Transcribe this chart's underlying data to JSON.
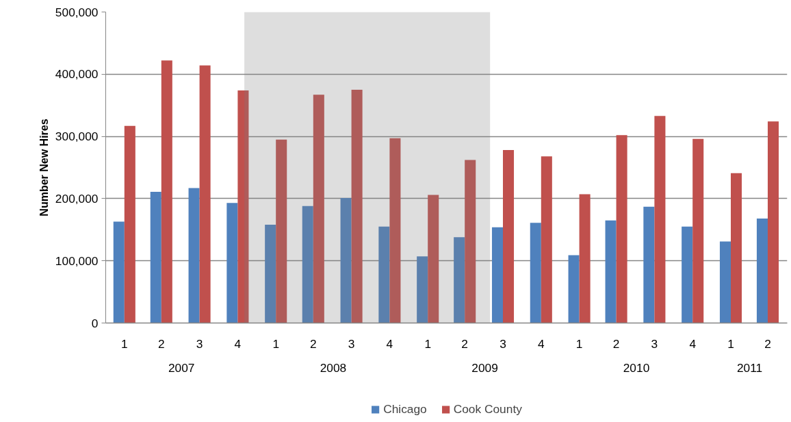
{
  "chart_data": {
    "type": "bar",
    "ylabel": "Number New Hires",
    "x": [
      "2007-02-15",
      "2007-05-15",
      "2007-08-15",
      "2007-11-15",
      "2008-02-15",
      "2008-05-15",
      "2008-08-15",
      "2008-11-15",
      "2009-02-15",
      "2009-05-15",
      "2009-08-15",
      "2009-11-15",
      "2010-02-15",
      "2010-05-15",
      "2010-08-15",
      "2010-11-15",
      "2011-02-15",
      "2011-05-15"
    ],
    "xlim": [
      "2007-01-01",
      "2011-07-01"
    ],
    "xticks": [
      {
        "value": "2007-02-15",
        "label": "1"
      },
      {
        "value": "2007-05-15",
        "label": "2"
      },
      {
        "value": "2007-08-15",
        "label": "3"
      },
      {
        "value": "2007-11-15",
        "label": "4"
      },
      {
        "value": "2008-02-15",
        "label": "1"
      },
      {
        "value": "2008-05-15",
        "label": "2"
      },
      {
        "value": "2008-08-15",
        "label": "3"
      },
      {
        "value": "2008-11-15",
        "label": "4"
      },
      {
        "value": "2009-02-15",
        "label": "1"
      },
      {
        "value": "2009-05-15",
        "label": "2"
      },
      {
        "value": "2009-08-15",
        "label": "3"
      },
      {
        "value": "2009-11-15",
        "label": "4"
      },
      {
        "value": "2010-02-15",
        "label": "1"
      },
      {
        "value": "2010-05-15",
        "label": "2"
      },
      {
        "value": "2010-08-15",
        "label": "3"
      },
      {
        "value": "2010-11-15",
        "label": "4"
      },
      {
        "value": "2011-02-15",
        "label": "1"
      },
      {
        "value": "2011-05-15",
        "label": "2"
      }
    ],
    "series": [
      {
        "name": "Chicago",
        "color": "#4f81bd",
        "values": [
          163000,
          211000,
          217000,
          193000,
          158000,
          188000,
          201000,
          155000,
          107000,
          138000,
          154000,
          161000,
          109000,
          165000,
          187000,
          155000,
          131000,
          168000
        ]
      },
      {
        "name": "Cook County",
        "color": "#c0504d",
        "values": [
          317000,
          422000,
          414000,
          374000,
          295000,
          367000,
          375000,
          297000,
          206000,
          262000,
          278000,
          268000,
          207000,
          302000,
          333000,
          296000,
          241000,
          324000
        ]
      }
    ],
    "annotations": [
      "2007",
      "2008",
      "2009",
      "2010",
      "2011"
    ],
    "ylim": [
      0,
      500000
    ],
    "yticks": [
      0,
      {
        "value": 100000,
        "label": "100,000"
      },
      {
        "value": 200000,
        "label": "200,000"
      },
      {
        "value": 300000,
        "label": "300,000"
      },
      {
        "value": 400000,
        "label": "400,000"
      },
      {
        "value": 500000,
        "label": "500,000"
      }
    ],
    "bands": [
      {
        "axis": "x",
        "from": "2007-12",
        "to": "2009-07-15",
        "color": "#808080"
      }
    ],
    "grid": "y",
    "legend": "bottom"
  }
}
